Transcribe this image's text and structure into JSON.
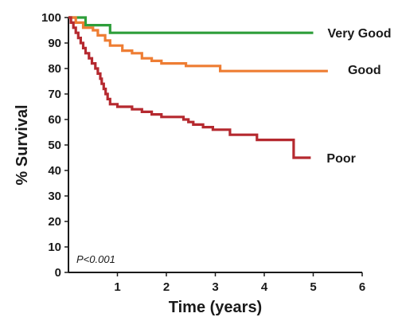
{
  "chart_data": {
    "type": "line",
    "step": true,
    "xlabel": "Time (years)",
    "ylabel": "% Survival",
    "xlim": [
      0,
      6
    ],
    "ylim": [
      0,
      100
    ],
    "xticks": [
      1,
      2,
      3,
      4,
      5,
      6
    ],
    "yticks": [
      0,
      10,
      20,
      30,
      40,
      50,
      60,
      70,
      80,
      90,
      100
    ],
    "grid": false,
    "legend": "inline labels at line ends",
    "annotation": "P<0.001",
    "series": [
      {
        "name": "Very Good",
        "color": "#2e9e3a",
        "points": [
          [
            0,
            100
          ],
          [
            0.35,
            100
          ],
          [
            0.35,
            97
          ],
          [
            0.85,
            97
          ],
          [
            0.85,
            94
          ],
          [
            5.0,
            94
          ]
        ]
      },
      {
        "name": "Good",
        "color": "#ee7d33",
        "points": [
          [
            0,
            100
          ],
          [
            0.15,
            100
          ],
          [
            0.15,
            98
          ],
          [
            0.3,
            98
          ],
          [
            0.3,
            96
          ],
          [
            0.5,
            96
          ],
          [
            0.5,
            95
          ],
          [
            0.6,
            95
          ],
          [
            0.6,
            93
          ],
          [
            0.75,
            93
          ],
          [
            0.75,
            91
          ],
          [
            0.85,
            91
          ],
          [
            0.85,
            89
          ],
          [
            1.1,
            89
          ],
          [
            1.1,
            87
          ],
          [
            1.3,
            87
          ],
          [
            1.3,
            86
          ],
          [
            1.5,
            86
          ],
          [
            1.5,
            84
          ],
          [
            1.7,
            84
          ],
          [
            1.7,
            83
          ],
          [
            1.9,
            83
          ],
          [
            1.9,
            82
          ],
          [
            2.4,
            82
          ],
          [
            2.4,
            81
          ],
          [
            3.1,
            81
          ],
          [
            3.1,
            79
          ],
          [
            5.3,
            79
          ]
        ]
      },
      {
        "name": "Poor",
        "color": "#b5292f",
        "points": [
          [
            0,
            100
          ],
          [
            0.05,
            100
          ],
          [
            0.05,
            98
          ],
          [
            0.1,
            98
          ],
          [
            0.1,
            96
          ],
          [
            0.15,
            96
          ],
          [
            0.15,
            94
          ],
          [
            0.2,
            94
          ],
          [
            0.2,
            92
          ],
          [
            0.25,
            92
          ],
          [
            0.25,
            90
          ],
          [
            0.3,
            90
          ],
          [
            0.3,
            88
          ],
          [
            0.35,
            88
          ],
          [
            0.35,
            86
          ],
          [
            0.42,
            86
          ],
          [
            0.42,
            84
          ],
          [
            0.48,
            84
          ],
          [
            0.48,
            82
          ],
          [
            0.55,
            82
          ],
          [
            0.55,
            80
          ],
          [
            0.6,
            80
          ],
          [
            0.6,
            78
          ],
          [
            0.65,
            78
          ],
          [
            0.65,
            76
          ],
          [
            0.68,
            76
          ],
          [
            0.68,
            74
          ],
          [
            0.72,
            74
          ],
          [
            0.72,
            72
          ],
          [
            0.76,
            72
          ],
          [
            0.76,
            70
          ],
          [
            0.8,
            70
          ],
          [
            0.8,
            68
          ],
          [
            0.85,
            68
          ],
          [
            0.85,
            66
          ],
          [
            1.0,
            66
          ],
          [
            1.0,
            65
          ],
          [
            1.3,
            65
          ],
          [
            1.3,
            64
          ],
          [
            1.5,
            64
          ],
          [
            1.5,
            63
          ],
          [
            1.7,
            63
          ],
          [
            1.7,
            62
          ],
          [
            1.9,
            62
          ],
          [
            1.9,
            61
          ],
          [
            2.35,
            61
          ],
          [
            2.35,
            60
          ],
          [
            2.45,
            60
          ],
          [
            2.45,
            59
          ],
          [
            2.55,
            59
          ],
          [
            2.55,
            58
          ],
          [
            2.75,
            58
          ],
          [
            2.75,
            57
          ],
          [
            2.95,
            57
          ],
          [
            2.95,
            56
          ],
          [
            3.3,
            56
          ],
          [
            3.3,
            54
          ],
          [
            3.85,
            54
          ],
          [
            3.85,
            52
          ],
          [
            4.6,
            52
          ],
          [
            4.6,
            45
          ],
          [
            4.95,
            45
          ]
        ]
      }
    ]
  }
}
